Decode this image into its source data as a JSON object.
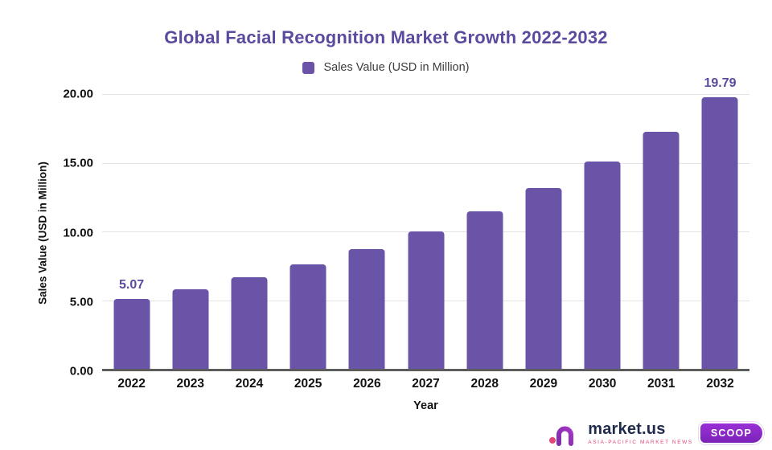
{
  "chart_data": {
    "type": "bar",
    "title": "Global Facial Recognition Market Growth 2022-2032",
    "xlabel": "Year",
    "ylabel": "Sales Value (USD in Million)",
    "categories": [
      "2022",
      "2023",
      "2024",
      "2025",
      "2026",
      "2027",
      "2028",
      "2029",
      "2030",
      "2031",
      "2032"
    ],
    "values": [
      5.07,
      5.81,
      6.66,
      7.63,
      8.74,
      10.02,
      11.48,
      13.15,
      15.07,
      17.27,
      19.79
    ],
    "ylim": [
      0,
      20
    ],
    "ytick_values": [
      0,
      5,
      10,
      15,
      20
    ],
    "ytick_labels": [
      "0.00",
      "5.00",
      "10.00",
      "15.00",
      "20.00"
    ],
    "grid": "horizontal",
    "legend": {
      "position": "top",
      "label": "Sales Value (USD in Million)"
    },
    "data_labels": {
      "2022": "5.07",
      "2032": "19.79"
    }
  },
  "colors": {
    "bar": "#6a54a8",
    "title": "#5b4a9e",
    "data_label": "#5b4a9e",
    "gridline": "#e3e3e3",
    "baseline": "#5c5c5c",
    "legend_text": "#3d3d3d",
    "logo_navy": "#1f2b4d",
    "logo_pink": "#e0457b",
    "badge_purple": "#8b2bc9"
  },
  "logo": {
    "wordmark": "market.us",
    "tagline": "ASIA-PACIFIC MARKET NEWS",
    "badge": "SCOOP"
  }
}
